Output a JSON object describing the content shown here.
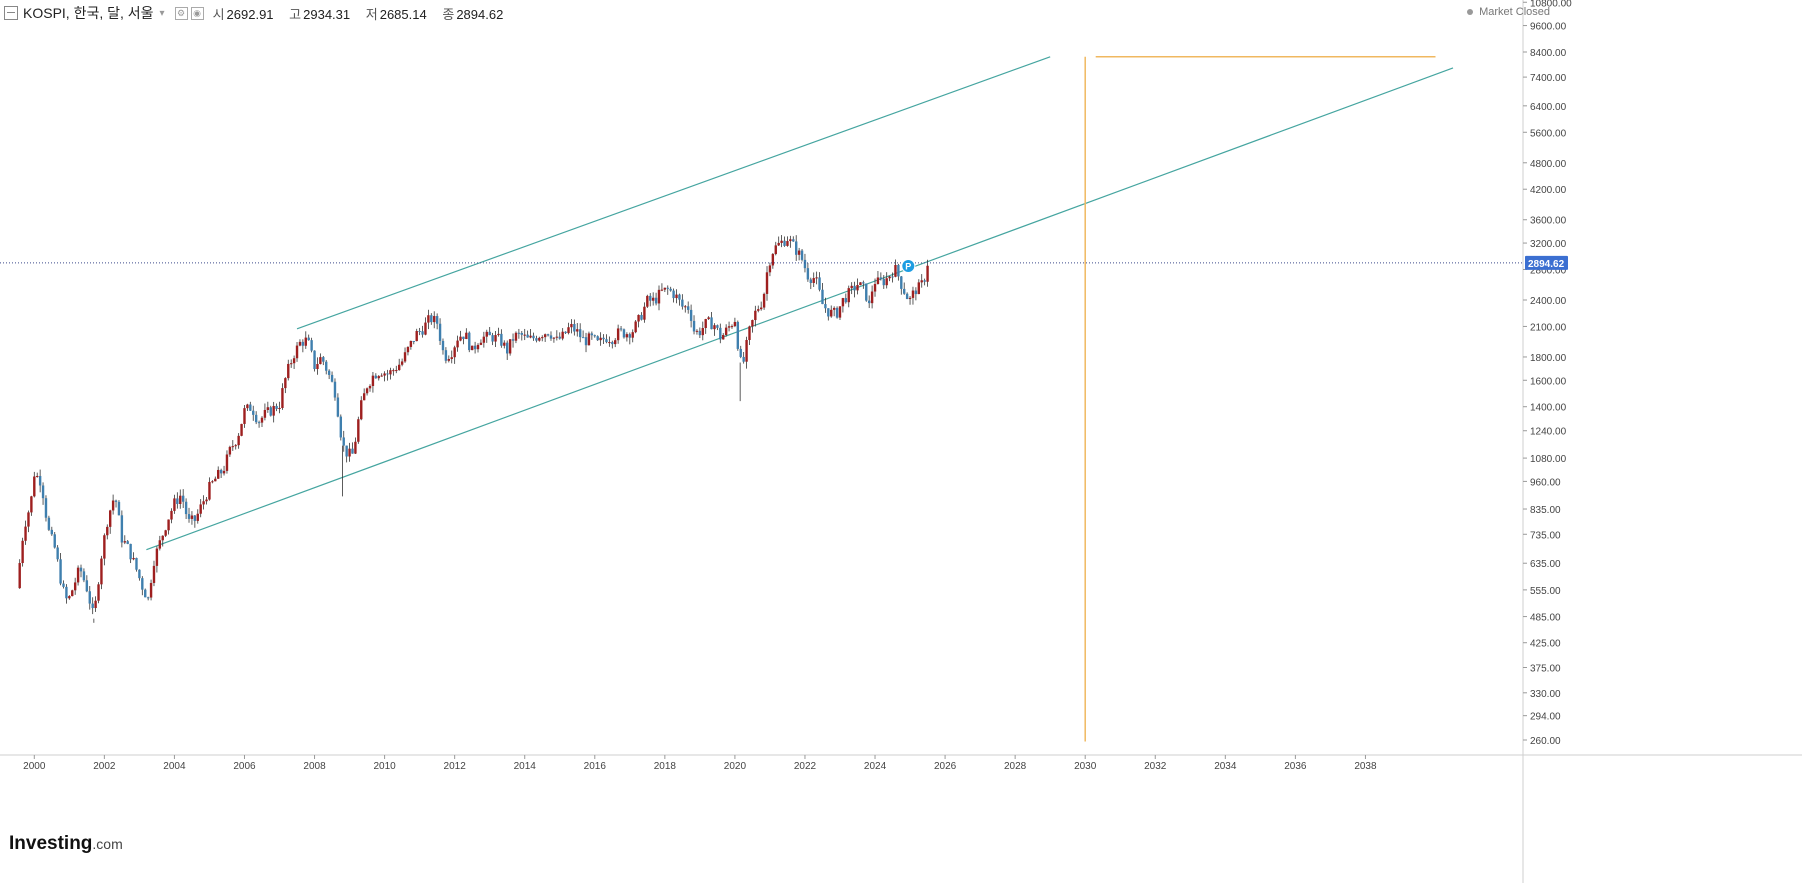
{
  "header": {
    "symbol": "KOSPI, 한국, 달, 서울",
    "open_label": "시",
    "open": "2692.91",
    "high_label": "고",
    "high": "2934.31",
    "low_label": "저",
    "low": "2685.14",
    "close_label": "종",
    "close": "2894.62",
    "market_status": "Market Closed"
  },
  "logo": {
    "main": "Investing",
    "suffix": ".com"
  },
  "colors": {
    "up": "#9e1f1f",
    "down": "#3f7fae",
    "channel": "#45a5a0",
    "projection": "#f0b860",
    "last_price_badge": "#3b6fd1",
    "grid": "#e8e8e8"
  },
  "chart_data": {
    "type": "candlestick",
    "title": "",
    "xlabel": "",
    "ylabel": "",
    "y_scale": "log",
    "ylim": [
      240,
      10800
    ],
    "xlim": [
      1999.5,
      2041
    ],
    "y_ticks": [
      "10800.00",
      "9600.00",
      "8400.00",
      "7400.00",
      "6400.00",
      "5600.00",
      "4800.00",
      "4200.00",
      "3600.00",
      "3200.00",
      "2800.00",
      "2400.00",
      "2100.00",
      "1800.00",
      "1600.00",
      "1400.00",
      "1240.00",
      "1080.00",
      "960.00",
      "835.00",
      "735.00",
      "635.00",
      "555.00",
      "485.00",
      "425.00",
      "375.00",
      "330.00",
      "294.00",
      "260.00"
    ],
    "x_ticks": [
      "2000",
      "2002",
      "2004",
      "2006",
      "2008",
      "2010",
      "2012",
      "2014",
      "2016",
      "2018",
      "2020",
      "2022",
      "2024",
      "2026",
      "2028",
      "2030",
      "2032",
      "2034",
      "2036",
      "2038"
    ],
    "last_price": 2894.62,
    "last_price_label": "2894.62",
    "price_path": [
      [
        1999.5,
        560
      ],
      [
        1999.7,
        760
      ],
      [
        1999.9,
        860
      ],
      [
        2000.0,
        1000
      ],
      [
        2000.2,
        960
      ],
      [
        2000.4,
        750
      ],
      [
        2000.6,
        680
      ],
      [
        2000.8,
        560
      ],
      [
        2000.95,
        520
      ],
      [
        2001.1,
        560
      ],
      [
        2001.3,
        620
      ],
      [
        2001.5,
        560
      ],
      [
        2001.7,
        480
      ],
      [
        2001.9,
        650
      ],
      [
        2002.1,
        800
      ],
      [
        2002.3,
        900
      ],
      [
        2002.5,
        720
      ],
      [
        2002.7,
        680
      ],
      [
        2002.9,
        620
      ],
      [
        2003.1,
        560
      ],
      [
        2003.25,
        530
      ],
      [
        2003.4,
        640
      ],
      [
        2003.6,
        710
      ],
      [
        2003.8,
        790
      ],
      [
        2004.0,
        860
      ],
      [
        2004.2,
        900
      ],
      [
        2004.4,
        780
      ],
      [
        2004.6,
        790
      ],
      [
        2004.8,
        860
      ],
      [
        2005.0,
        930
      ],
      [
        2005.2,
        980
      ],
      [
        2005.4,
        1020
      ],
      [
        2005.6,
        1130
      ],
      [
        2005.8,
        1200
      ],
      [
        2006.0,
        1370
      ],
      [
        2006.2,
        1400
      ],
      [
        2006.4,
        1300
      ],
      [
        2006.6,
        1350
      ],
      [
        2006.8,
        1380
      ],
      [
        2007.0,
        1420
      ],
      [
        2007.2,
        1650
      ],
      [
        2007.4,
        1820
      ],
      [
        2007.6,
        1940
      ],
      [
        2007.8,
        1960
      ],
      [
        2008.0,
        1720
      ],
      [
        2008.2,
        1800
      ],
      [
        2008.4,
        1650
      ],
      [
        2008.6,
        1500
      ],
      [
        2008.8,
        1150
      ],
      [
        2008.95,
        1100
      ],
      [
        2009.1,
        1100
      ],
      [
        2009.3,
        1380
      ],
      [
        2009.5,
        1560
      ],
      [
        2009.7,
        1650
      ],
      [
        2009.9,
        1680
      ],
      [
        2010.1,
        1650
      ],
      [
        2010.3,
        1700
      ],
      [
        2010.5,
        1760
      ],
      [
        2010.7,
        1890
      ],
      [
        2010.9,
        2020
      ],
      [
        2011.1,
        2080
      ],
      [
        2011.3,
        2190
      ],
      [
        2011.5,
        2140
      ],
      [
        2011.7,
        1800
      ],
      [
        2011.9,
        1840
      ],
      [
        2012.1,
        2000
      ],
      [
        2012.3,
        2020
      ],
      [
        2012.5,
        1850
      ],
      [
        2012.7,
        1980
      ],
      [
        2012.9,
        1990
      ],
      [
        2013.1,
        1990
      ],
      [
        2013.3,
        1960
      ],
      [
        2013.5,
        1860
      ],
      [
        2013.7,
        2000
      ],
      [
        2013.9,
        2010
      ],
      [
        2014.1,
        1960
      ],
      [
        2014.3,
        1990
      ],
      [
        2014.5,
        2030
      ],
      [
        2014.7,
        2050
      ],
      [
        2014.9,
        1950
      ],
      [
        2015.1,
        2000
      ],
      [
        2015.3,
        2100
      ],
      [
        2015.5,
        2040
      ],
      [
        2015.7,
        1950
      ],
      [
        2015.9,
        1980
      ],
      [
        2016.1,
        1920
      ],
      [
        2016.3,
        1990
      ],
      [
        2016.5,
        1980
      ],
      [
        2016.7,
        2040
      ],
      [
        2016.9,
        2030
      ],
      [
        2017.1,
        2060
      ],
      [
        2017.3,
        2200
      ],
      [
        2017.5,
        2390
      ],
      [
        2017.7,
        2390
      ],
      [
        2017.9,
        2500
      ],
      [
        2018.1,
        2530
      ],
      [
        2018.3,
        2460
      ],
      [
        2018.5,
        2320
      ],
      [
        2018.7,
        2310
      ],
      [
        2018.85,
        2030
      ],
      [
        2019.0,
        2050
      ],
      [
        2019.2,
        2140
      ],
      [
        2019.4,
        2130
      ],
      [
        2019.6,
        1980
      ],
      [
        2019.8,
        2080
      ],
      [
        2020.0,
        2180
      ],
      [
        2020.15,
        1750
      ],
      [
        2020.25,
        1760
      ],
      [
        2020.4,
        2030
      ],
      [
        2020.6,
        2270
      ],
      [
        2020.8,
        2400
      ],
      [
        2020.95,
        2870
      ],
      [
        2021.1,
        3100
      ],
      [
        2021.3,
        3200
      ],
      [
        2021.5,
        3280
      ],
      [
        2021.7,
        3130
      ],
      [
        2021.9,
        2970
      ],
      [
        2022.1,
        2700
      ],
      [
        2022.3,
        2680
      ],
      [
        2022.5,
        2350
      ],
      [
        2022.7,
        2250
      ],
      [
        2022.9,
        2240
      ],
      [
        2023.1,
        2410
      ],
      [
        2023.3,
        2500
      ],
      [
        2023.5,
        2600
      ],
      [
        2023.7,
        2530
      ],
      [
        2023.85,
        2300
      ],
      [
        2023.95,
        2650
      ],
      [
        2024.1,
        2620
      ],
      [
        2024.3,
        2650
      ],
      [
        2024.5,
        2780
      ],
      [
        2024.6,
        2800
      ],
      [
        2024.75,
        2600
      ],
      [
        2024.9,
        2450
      ],
      [
        2025.0,
        2400
      ],
      [
        2025.15,
        2530
      ],
      [
        2025.3,
        2560
      ],
      [
        2025.42,
        2692.91
      ],
      [
        2025.5,
        2894.62
      ]
    ],
    "wick_extremes": [
      {
        "x": 2008.8,
        "low": 890
      },
      {
        "x": 2020.15,
        "low": 1440
      },
      {
        "x": 2001.7,
        "low": 470
      }
    ],
    "drawings": {
      "channel_upper": [
        [
          2007.5,
          2075
        ],
        [
          2029.0,
          8200
        ]
      ],
      "channel_lower": [
        [
          2003.2,
          680
        ],
        [
          2040.5,
          7750
        ]
      ],
      "projection_vertical_x": 2030.0,
      "projection_vertical_range": [
        258,
        8200
      ],
      "projection_horizontal_y": 8200,
      "projection_horizontal_range": [
        2030.3,
        2040.0
      ]
    },
    "marker": {
      "x": 2024.95,
      "y": 2850,
      "label": "P"
    }
  }
}
